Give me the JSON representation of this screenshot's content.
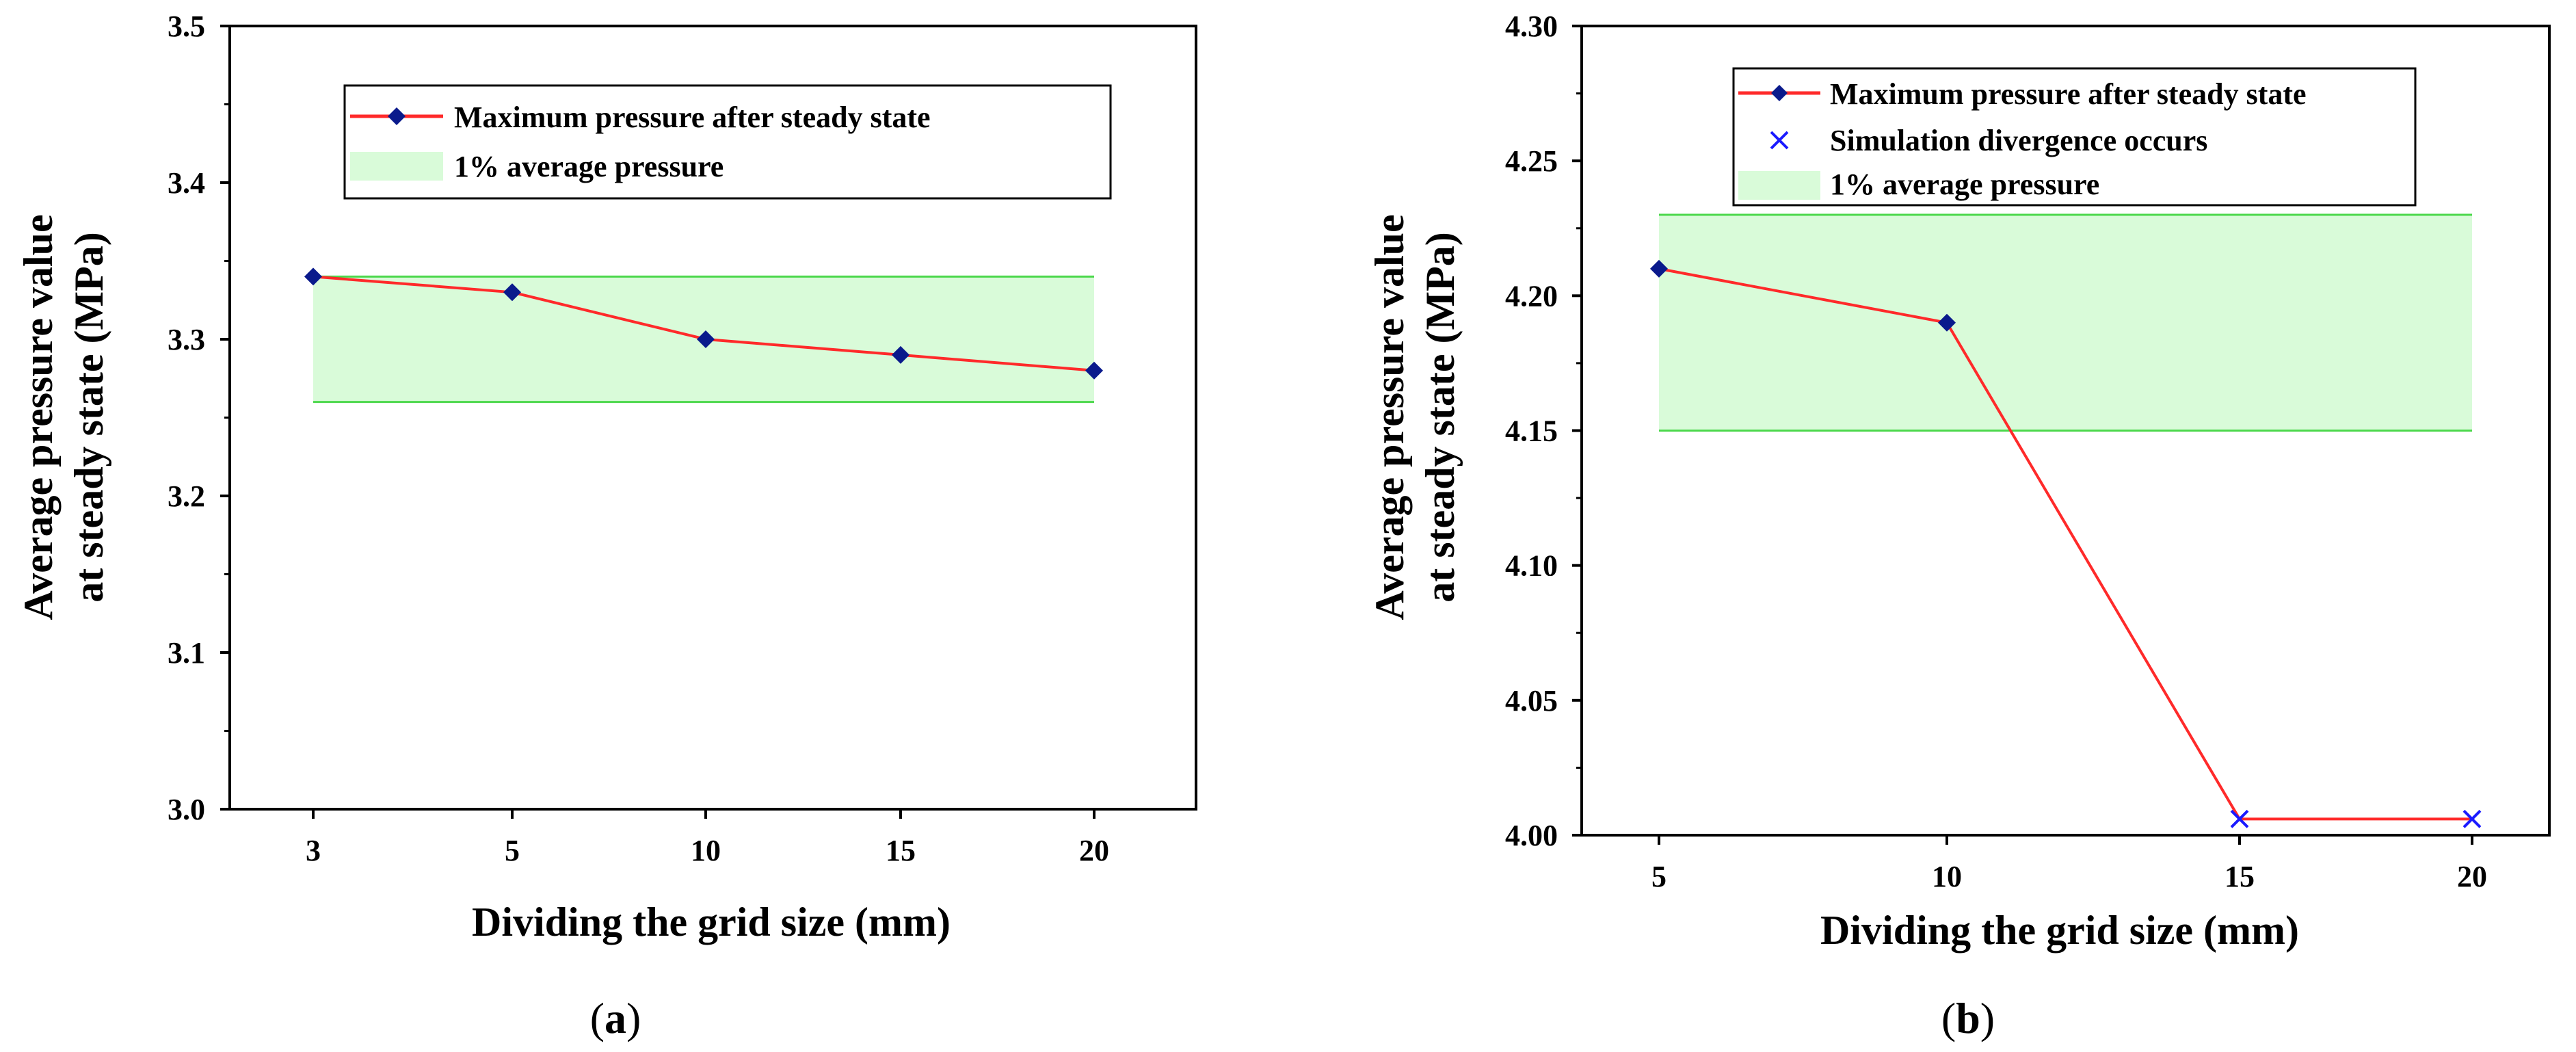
{
  "chart_data": [
    {
      "type": "line",
      "panel": "a",
      "caption_open": "(",
      "caption_letter": "a",
      "caption_close": ")",
      "title": "",
      "xlabel": "Dividing the grid size (mm)",
      "ylabel_line1": "Average pressure value",
      "ylabel_line2": "at steady state (MPa)",
      "categories": [
        "3",
        "5",
        "10",
        "15",
        "20"
      ],
      "ylim": [
        3.0,
        3.5
      ],
      "yticks": [
        "3.0",
        "3.1",
        "3.2",
        "3.3",
        "3.4",
        "3.5"
      ],
      "series": [
        {
          "name": "Maximum pressure after steady state",
          "values": [
            3.34,
            3.33,
            3.3,
            3.29,
            3.28
          ],
          "color": "#ff2a2a",
          "marker_color": "#0a1a8c"
        }
      ],
      "band": {
        "name": "1% average pressure",
        "low": 3.26,
        "high": 3.34,
        "fill": "#d9fbd9",
        "edge": "#4cd84c"
      },
      "legend": [
        "Maximum pressure after steady state",
        "1% average pressure"
      ],
      "legend_position": "top-right"
    },
    {
      "type": "line",
      "panel": "b",
      "caption_open": "(",
      "caption_letter": "b",
      "caption_close": ")",
      "title": "",
      "xlabel": "Dividing the grid size (mm)",
      "ylabel_line1": "Average pressure value",
      "ylabel_line2": "at steady state (MPa)",
      "categories": [
        "5",
        "10",
        "15",
        "20"
      ],
      "ylim": [
        4.0,
        4.3
      ],
      "yticks": [
        "4.00",
        "4.05",
        "4.10",
        "4.15",
        "4.20",
        "4.25",
        "4.30"
      ],
      "series": [
        {
          "name": "Maximum pressure after steady state",
          "values": [
            4.21,
            4.19,
            4.006,
            4.006
          ],
          "color": "#ff2a2a",
          "marker_color": "#0a1a8c"
        }
      ],
      "divergence": {
        "name": "Simulation divergence occurs",
        "points": [
          {
            "x": "15",
            "y": 4.006
          },
          {
            "x": "20",
            "y": 4.006
          }
        ],
        "color": "#1a1aff"
      },
      "band": {
        "name": "1% average pressure",
        "low": 4.15,
        "high": 4.23,
        "fill": "#d9fbd9",
        "edge": "#4cd84c"
      },
      "legend": [
        "Maximum pressure after steady state",
        "Simulation divergence occurs",
        "1% average pressure"
      ],
      "legend_position": "top"
    }
  ]
}
